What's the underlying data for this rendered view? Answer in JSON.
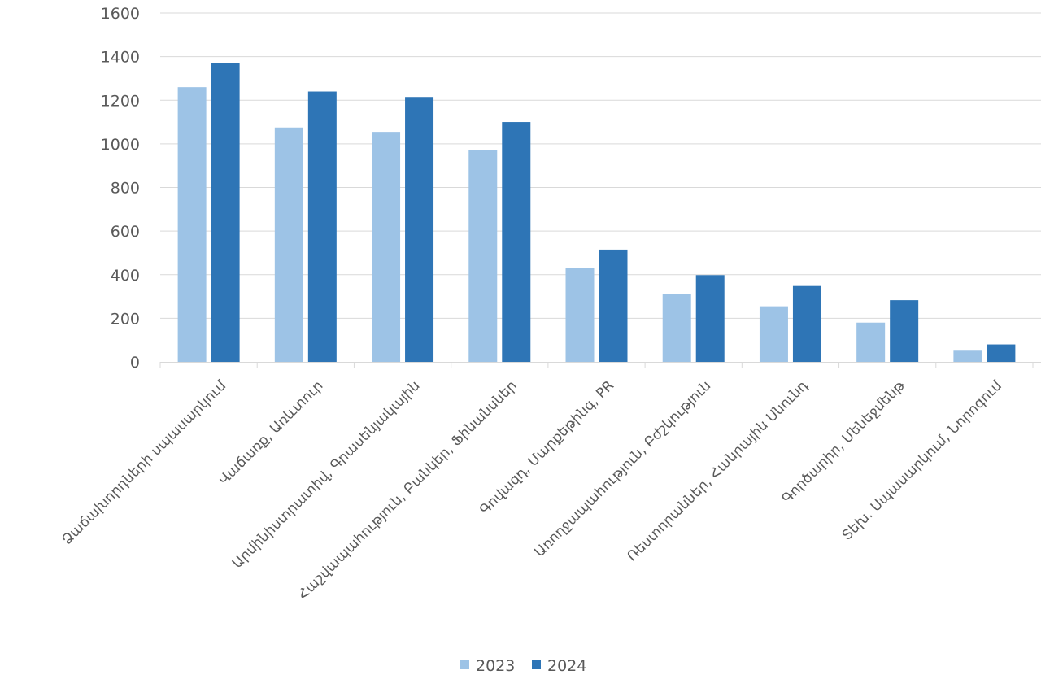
{
  "chart_data": {
    "type": "bar",
    "title": "",
    "xlabel": "",
    "ylabel": "",
    "ylim": [
      0,
      1600
    ],
    "yticks": [
      0,
      200,
      400,
      600,
      800,
      1000,
      1200,
      1400,
      1600
    ],
    "grid": true,
    "legend_position": "bottom",
    "categories": [
      "Ձաճախորդների սպասարկում",
      "Վաճառք, Առևտուր",
      "Արմինիստրատիվ, Գրասենյակային",
      "Հաշվապահություն, Բանկեր, Ֆինանսներ",
      "Գովազդ, Մարքեթինգ, PR",
      "Առողջապահություն, Բժշկություն",
      "Ռեստորաններ, Հանրային Սնունդ",
      "Գործարիր, Մենեջմենթ",
      "Տեխ. Սպասարկում, Նորոգում"
    ],
    "series": [
      {
        "name": "2023",
        "color": "#9dc3e6",
        "values": [
          1260,
          1075,
          1055,
          970,
          430,
          310,
          255,
          180,
          55
        ]
      },
      {
        "name": "2024",
        "color": "#2e75b6",
        "values": [
          1370,
          1240,
          1215,
          1100,
          515,
          398,
          348,
          283,
          80
        ]
      }
    ]
  }
}
